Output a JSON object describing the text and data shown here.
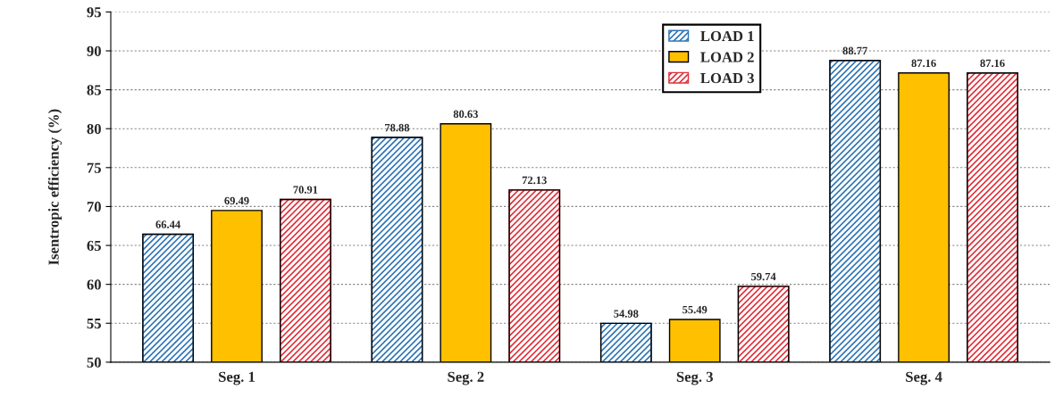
{
  "chart_data": {
    "type": "bar",
    "ylabel": "Isentropic efficiency (%)",
    "categories": [
      "Seg. 1",
      "Seg. 2",
      "Seg. 3",
      "Seg. 4"
    ],
    "series": [
      {
        "name": "LOAD 1",
        "color": "#2e75b6",
        "values": [
          66.44,
          78.88,
          54.98,
          88.77
        ]
      },
      {
        "name": "LOAD 2",
        "color": "#ffc000",
        "values": [
          69.49,
          80.63,
          55.49,
          87.16
        ]
      },
      {
        "name": "LOAD 3",
        "color": "#e0303a",
        "values": [
          70.91,
          72.13,
          59.74,
          87.16
        ]
      }
    ],
    "ylim": [
      50,
      95
    ],
    "yticks": [
      50,
      55,
      60,
      65,
      70,
      75,
      80,
      85,
      90,
      95
    ],
    "grid": "y",
    "legend": "top",
    "data_labels": true
  }
}
